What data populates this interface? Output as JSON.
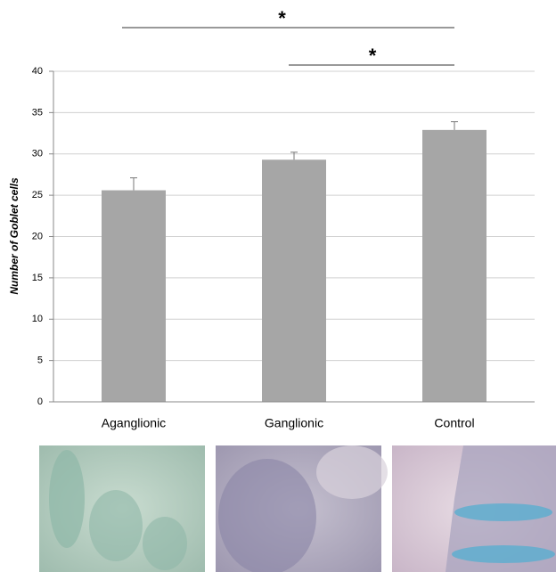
{
  "chart_data": {
    "type": "bar",
    "y_label": "Number of Goblet cells",
    "categories": [
      "Aganglionic",
      "Ganglionic",
      "Control"
    ],
    "values": [
      25.6,
      29.3,
      32.9
    ],
    "errors": [
      1.5,
      0.9,
      1.0
    ],
    "color": "#a6a6a6",
    "ylim": [
      0,
      40
    ],
    "yticks": [
      0,
      5,
      10,
      15,
      20,
      25,
      30,
      35,
      40
    ],
    "grid": true,
    "comparisons": [
      {
        "from": "Aganglionic",
        "to": "Control",
        "label": "*"
      },
      {
        "from": "Ganglionic",
        "to": "Control",
        "label": "*"
      }
    ]
  }
}
